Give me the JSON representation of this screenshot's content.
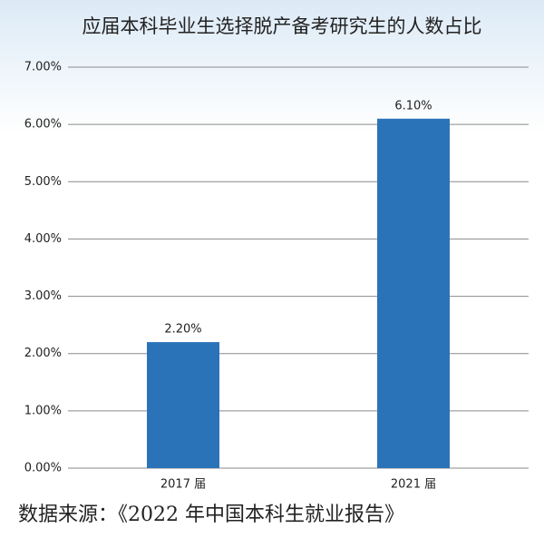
{
  "chart_data": {
    "type": "bar",
    "title": "应届本科毕业生选择脱产备考研究生的人数占比",
    "categories": [
      "2017 届",
      "2021 届"
    ],
    "values": [
      2.2,
      6.1
    ],
    "value_labels": [
      "2.20%",
      "6.10%"
    ],
    "color": "#2a73b9",
    "ylim": [
      0,
      7
    ],
    "yticks": [
      {
        "value": 0,
        "label": "0.00%"
      },
      {
        "value": 1,
        "label": "1.00%"
      },
      {
        "value": 2,
        "label": "2.00%"
      },
      {
        "value": 3,
        "label": "3.00%"
      },
      {
        "value": 4,
        "label": "4.00%"
      },
      {
        "value": 5,
        "label": "5.00%"
      },
      {
        "value": 6,
        "label": "6.00%"
      },
      {
        "value": 7,
        "label": "7.00%"
      }
    ],
    "grid": true,
    "source": "数据来源：《2022 年中国本科生就业报告》"
  }
}
